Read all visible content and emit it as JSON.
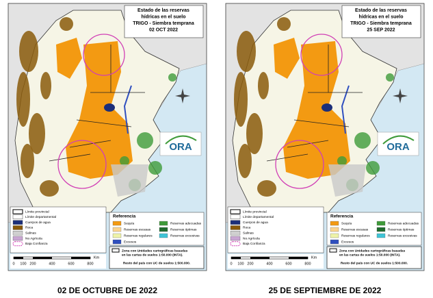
{
  "map_title": [
    "Estado de las reservas",
    "hídricas en el suelo",
    "TRIGO - Siembra temprana"
  ],
  "logo": "ORA",
  "legend": {
    "boundaries": [
      {
        "label": "Límite provincial",
        "style": "solid"
      },
      {
        "label": "Límite departamental",
        "style": "thin"
      }
    ],
    "other": [
      {
        "label": "Cuerpos de agua",
        "color": "#1c2f7a"
      },
      {
        "label": "Roca",
        "color": "#8a5a0a"
      },
      {
        "label": "Salinas",
        "color": "#d0d0d0"
      },
      {
        "label": "No Agrícola",
        "color": "#c9a6d3"
      },
      {
        "label": "Baja Confianza",
        "color": "#d13fb5"
      }
    ],
    "reference_title": "Referencia",
    "reference": [
      {
        "label": "Sequía",
        "color": "#f39a12"
      },
      {
        "label": "Reservas adecuadas",
        "color": "#3f9b3a"
      },
      {
        "label": "Reservas escasas",
        "color": "#fbd48f"
      },
      {
        "label": "Reservas óptimas",
        "color": "#1f6b2d"
      },
      {
        "label": "Reservas regulares",
        "color": "#eef3a8"
      },
      {
        "label": "Reservas excesivas",
        "color": "#3fc4d6"
      },
      {
        "label": "Excesos",
        "color": "#2f4fbf"
      }
    ],
    "note_lines": [
      "Zona con Unidades cartográficas basadas",
      "en las cartas de suelos 1:50.000 (INTA).",
      "Resto del país con UC de suelos 1:500.000."
    ]
  },
  "scale_bar": {
    "labels": [
      "0",
      "100",
      "200",
      "400",
      "600",
      "800"
    ],
    "unit": "Km"
  },
  "maps": [
    {
      "date": "02 OCT 2022",
      "caption": "02 DE OCTUBRE DE 2022"
    },
    {
      "date": "25 SEP 2022",
      "caption": "25 DE SEPTIEMBRE DE 2022"
    }
  ]
}
